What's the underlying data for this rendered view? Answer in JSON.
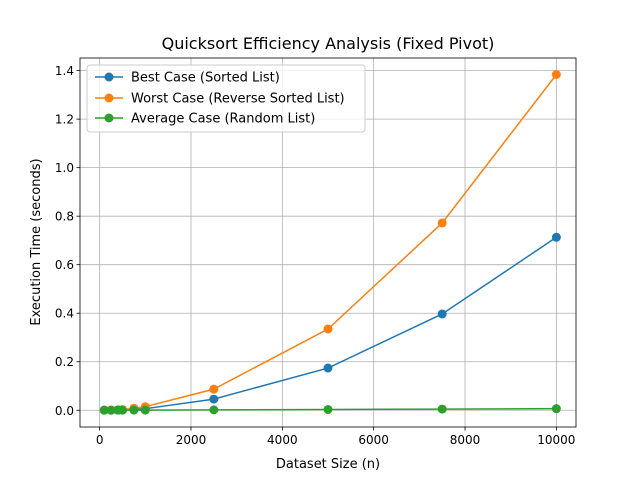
{
  "chart_data": {
    "type": "line",
    "title": "Quicksort Efficiency Analysis (Fixed Pivot)",
    "xlabel": "Dataset Size (n)",
    "ylabel": "Execution Time (seconds)",
    "x": [
      100,
      250,
      400,
      500,
      750,
      1000,
      2500,
      5000,
      7500,
      10000
    ],
    "xlim": [
      -430,
      10430
    ],
    "ylim": [
      -0.069,
      1.452
    ],
    "xticks": [
      0,
      2000,
      4000,
      6000,
      8000,
      10000
    ],
    "xtick_labels": [
      "0",
      "2000",
      "4000",
      "6000",
      "8000",
      "10000"
    ],
    "yticks": [
      0.0,
      0.2,
      0.4,
      0.6,
      0.8,
      1.0,
      1.2,
      1.4
    ],
    "ytick_labels": [
      "0.0",
      "0.2",
      "0.4",
      "0.6",
      "0.8",
      "1.0",
      "1.2",
      "1.4"
    ],
    "grid": true,
    "legend_position": "top-left",
    "series": [
      {
        "name": "Best Case (Sorted List)",
        "color": "#1f77b4",
        "marker": "circle",
        "values": [
          0.0007,
          0.0008,
          0.0012,
          0.0017,
          0.0035,
          0.0065,
          0.046,
          0.174,
          0.397,
          0.713
        ]
      },
      {
        "name": "Worst Case (Reverse Sorted List)",
        "color": "#ff7f0e",
        "marker": "circle",
        "values": [
          0.0009,
          0.0011,
          0.0019,
          0.0027,
          0.0082,
          0.0147,
          0.087,
          0.335,
          0.772,
          1.384
        ]
      },
      {
        "name": "Average Case (Random List)",
        "color": "#2ca02c",
        "marker": "circle",
        "values": [
          0.0001,
          0.0002,
          0.0004,
          0.0005,
          0.0006,
          0.0008,
          0.0016,
          0.0031,
          0.0049,
          0.0066
        ]
      }
    ]
  }
}
